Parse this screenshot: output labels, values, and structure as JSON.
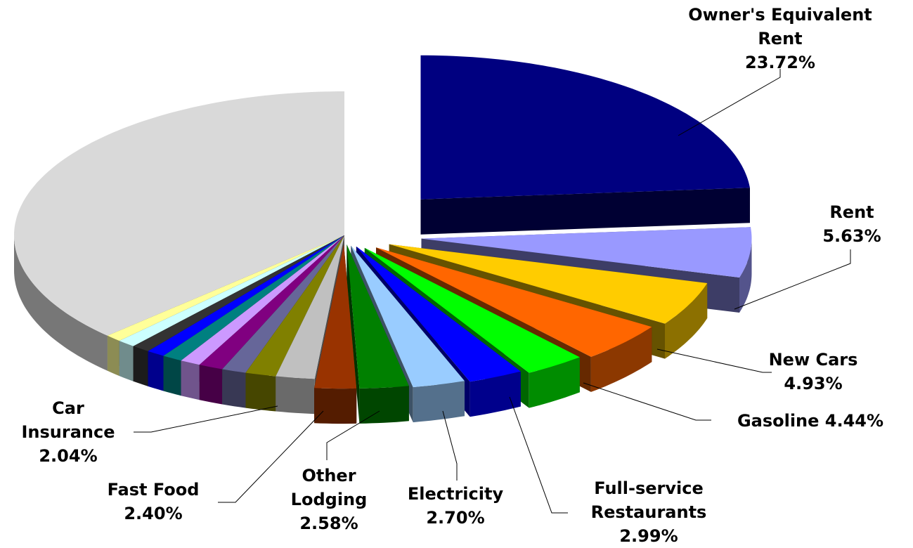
{
  "chart_data": {
    "type": "pie",
    "categories": [
      "Owner's Equivalent Rent",
      "Rent",
      "New Cars",
      "Gasoline",
      "Full-service Restaurants",
      "Electricity",
      "Other Lodging",
      "Fast Food",
      "Car Insurance",
      null,
      null,
      null,
      null,
      null,
      null,
      null,
      null,
      null,
      null,
      null
    ],
    "values": [
      23.72,
      5.63,
      4.93,
      4.44,
      2.99,
      2.7,
      2.58,
      2.4,
      2.04,
      1.9,
      1.5,
      1.2,
      1.2,
      1.0,
      1.0,
      0.9,
      0.9,
      0.9,
      0.8,
      37.27
    ],
    "value_labels": [
      "23.72%",
      "5.63%",
      "4.93%",
      "4.44%",
      "2.99%",
      "2.70%",
      "2.58%",
      "2.40%",
      "2.04%",
      null,
      null,
      null,
      null,
      null,
      null,
      null,
      null,
      null,
      null,
      null
    ],
    "colors": [
      "#000080",
      "#9999ff",
      "#ffcc00",
      "#ff6600",
      "#00ff00",
      "#0000ff",
      "#99ccff",
      "#008000",
      "#993300",
      "#c0c0c0",
      "#808000",
      "#666699",
      "#800080",
      "#cc99ff",
      "#008080",
      "#0000ff",
      "#333333",
      "#ccffff",
      "#ffff99",
      "#d9d9d9"
    ]
  }
}
